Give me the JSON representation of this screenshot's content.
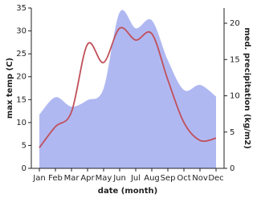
{
  "chart_data": {
    "type": "line-area",
    "x_label": "date (month)",
    "y_label": "max temp (C)",
    "y2_label": "med. precipitation (kg/m2)",
    "categories": [
      "Jan",
      "Feb",
      "Mar",
      "Apr",
      "May",
      "Jun",
      "Jul",
      "Aug",
      "Sep",
      "Oct",
      "Nov",
      "Dec"
    ],
    "series": [
      {
        "name": "max temp",
        "color": "#c0505a",
        "axis": "y",
        "values": [
          4.5,
          9.1,
          12.3,
          27.1,
          23.1,
          30.6,
          28,
          29.4,
          19.3,
          10,
          6.1,
          6.6
        ]
      },
      {
        "name": "med. precipitation",
        "color": "#b0b8f2",
        "axis": "y2",
        "values": [
          7.4,
          9.8,
          8.5,
          9.4,
          11,
          21.5,
          19.3,
          20.4,
          14.9,
          10.8,
          11.5,
          9.9
        ]
      }
    ],
    "ylim": [
      0,
      35
    ],
    "yticks": [
      0,
      5,
      10,
      15,
      20,
      25,
      30,
      35
    ],
    "y2lim": [
      0,
      22.1
    ],
    "y2ticks": [
      0,
      5,
      10,
      15,
      20
    ]
  }
}
